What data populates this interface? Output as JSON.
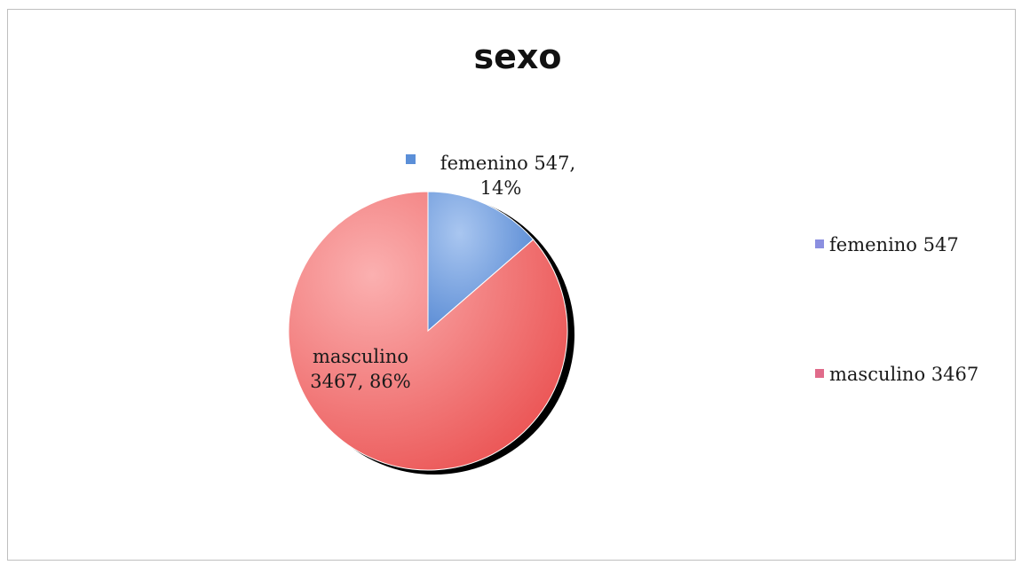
{
  "chart_data": {
    "type": "pie",
    "title": "sexo",
    "slices": [
      {
        "name": "femenino 547",
        "value": 547,
        "percent": 14,
        "color": "#5b8fd8",
        "label_lines": [
          "femenino 547,",
          "14%"
        ]
      },
      {
        "name": "masculino 3467",
        "value": 3467,
        "percent": 86,
        "color": "#ee5f5f",
        "label_lines": [
          "masculino",
          "3467, 86%"
        ]
      }
    ],
    "legend": {
      "position": "right",
      "entries": [
        "femenino 547",
        "masculino 3467"
      ],
      "colors": [
        "#8b8fe0",
        "#e06b8a"
      ]
    }
  }
}
